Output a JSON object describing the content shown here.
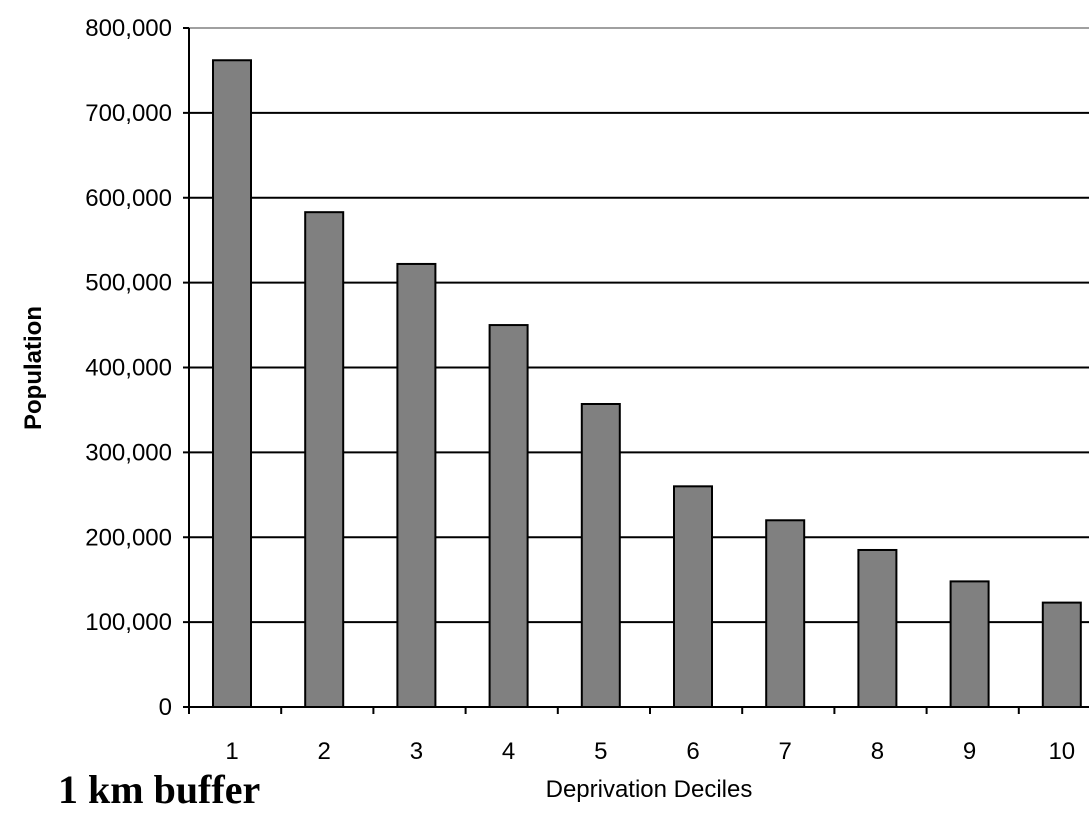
{
  "chart_data": {
    "type": "bar",
    "categories": [
      "1",
      "2",
      "3",
      "4",
      "5",
      "6",
      "7",
      "8",
      "9",
      "10"
    ],
    "values": [
      762000,
      583000,
      522000,
      450000,
      357000,
      260000,
      220000,
      185000,
      148000,
      123000
    ],
    "title": "",
    "xlabel": "Deprivation Deciles",
    "ylabel": "Population",
    "ylim": [
      0,
      800000
    ],
    "yticks": [
      "0",
      "100,000",
      "200,000",
      "300,000",
      "400,000",
      "500,000",
      "600,000",
      "700,000",
      "800,000"
    ],
    "grid": true,
    "legend": "none",
    "bar_color": "#808080",
    "caption": "1 km buffer"
  }
}
